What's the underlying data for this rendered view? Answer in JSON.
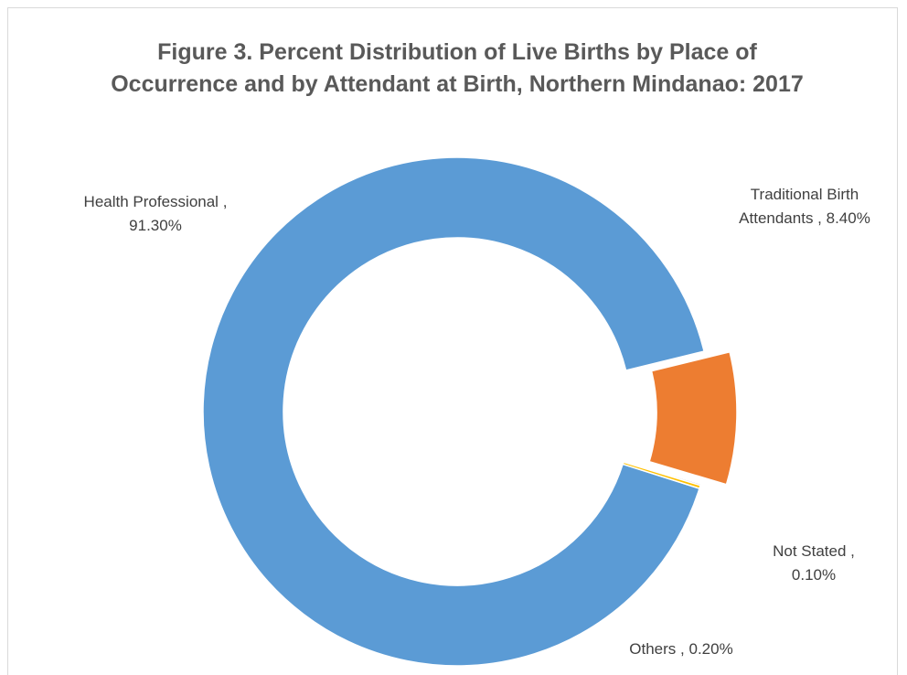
{
  "chart_data": {
    "type": "donut",
    "title": "Figure 3. Percent Distribution of Live Births by Place of Occurrence and by Attendant at Birth, Northern Mindanao: 2017",
    "categories": [
      "Health Professional",
      "Traditional Birth Attendants",
      "Not Stated",
      "Others"
    ],
    "values": [
      91.3,
      8.4,
      0.1,
      0.2
    ],
    "value_labels": [
      ", 91.30%",
      ", 8.40%",
      ", 0.10%",
      ", 0.20%"
    ],
    "colors": [
      "#5b9bd5",
      "#ed7d31",
      "#a5a5a5",
      "#ffc000"
    ]
  }
}
